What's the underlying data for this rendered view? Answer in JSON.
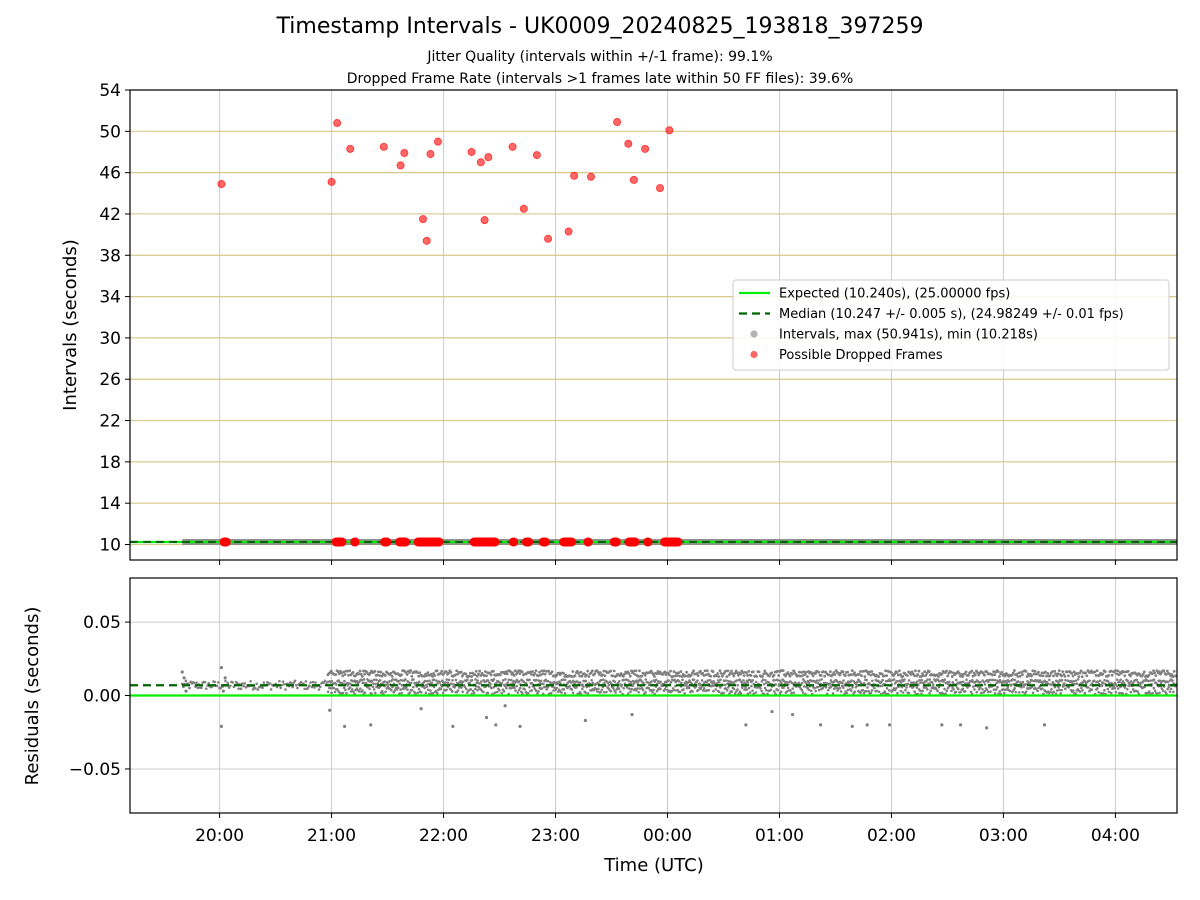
{
  "figure": {
    "title": "Timestamp Intervals - UK0009_20240825_193818_397259",
    "subtitle_1": "Jitter Quality (intervals within +/-1 frame): 99.1%",
    "subtitle_2": "Dropped Frame Rate (intervals >1 frames late within 50 FF files): 39.6%",
    "colors": {
      "expected": "#00ee00",
      "median": "#006400",
      "intervals": "#808080",
      "dropped": "#ff0000",
      "hgrid_top": "#d8c88a",
      "grid": "#cccccc"
    }
  },
  "chart_data": [
    {
      "type": "scatter",
      "ylabel": "Intervals (seconds)",
      "xlabel": "",
      "ylim": [
        8.5,
        54
      ],
      "yticks": [
        10,
        14,
        18,
        22,
        26,
        30,
        34,
        38,
        42,
        46,
        50,
        54
      ],
      "ytick_labels": [
        "10",
        "14",
        "18",
        "22",
        "26",
        "30",
        "34",
        "38",
        "42",
        "46",
        "50",
        "54"
      ],
      "xlim_hours": [
        19.2,
        4.55
      ],
      "xticks": [
        "20:00",
        "21:00",
        "22:00",
        "23:00",
        "00:00",
        "01:00",
        "02:00",
        "03:00",
        "04:00"
      ],
      "grid": true,
      "legend": {
        "placement": "center-right",
        "entries": [
          {
            "label": "Expected (10.240s), (25.00000 fps)",
            "kind": "solid-line",
            "color": "#00ee00"
          },
          {
            "label": "Median (10.247 +/- 0.005 s), (24.98249 +/- 0.01 fps)",
            "kind": "dashed-line",
            "color": "#006400"
          },
          {
            "label": "Intervals, max (50.941s), min (10.218s)",
            "kind": "marker",
            "color": "#808080"
          },
          {
            "label": "Possible Dropped Frames",
            "kind": "marker",
            "color": "#ff0000"
          }
        ]
      },
      "expected_interval": 10.24,
      "median_interval": 10.247,
      "regular_interval_span": [
        "19:40",
        "04:35"
      ],
      "dropped_frames_high": [
        [
          "20:01",
          44.9
        ],
        [
          "21:00",
          45.1
        ],
        [
          "21:03",
          50.8
        ],
        [
          "21:10",
          48.3
        ],
        [
          "21:28",
          48.5
        ],
        [
          "21:37",
          46.7
        ],
        [
          "21:39",
          47.9
        ],
        [
          "21:49",
          41.5
        ],
        [
          "21:51",
          39.4
        ],
        [
          "21:53",
          47.8
        ],
        [
          "21:57",
          49.0
        ],
        [
          "22:15",
          48.0
        ],
        [
          "22:20",
          47.0
        ],
        [
          "22:22",
          41.4
        ],
        [
          "22:24",
          47.5
        ],
        [
          "22:37",
          48.5
        ],
        [
          "22:43",
          42.5
        ],
        [
          "22:50",
          47.7
        ],
        [
          "22:56",
          39.6
        ],
        [
          "23:07",
          40.3
        ],
        [
          "23:10",
          45.7
        ],
        [
          "23:19",
          45.6
        ],
        [
          "23:33",
          50.9
        ],
        [
          "23:39",
          48.8
        ],
        [
          "23:42",
          45.3
        ],
        [
          "23:48",
          48.3
        ],
        [
          "23:56",
          44.5
        ],
        [
          "00:01",
          50.1
        ]
      ],
      "dropped_frames_baseline_ranges": [
        [
          "20:00",
          "20:06"
        ],
        [
          "21:00",
          "21:08"
        ],
        [
          "21:10",
          "21:15"
        ],
        [
          "21:26",
          "21:32"
        ],
        [
          "21:34",
          "21:42"
        ],
        [
          "21:44",
          "22:00"
        ],
        [
          "22:14",
          "22:30"
        ],
        [
          "22:35",
          "22:40"
        ],
        [
          "22:42",
          "22:48"
        ],
        [
          "22:51",
          "22:57"
        ],
        [
          "23:02",
          "23:11"
        ],
        [
          "23:15",
          "23:20"
        ],
        [
          "23:29",
          "23:35"
        ],
        [
          "23:37",
          "23:45"
        ],
        [
          "23:47",
          "23:52"
        ],
        [
          "23:56",
          "00:08"
        ]
      ]
    },
    {
      "type": "scatter",
      "ylabel": "Residuals (seconds)",
      "xlabel": "Time (UTC)",
      "ylim": [
        -0.08,
        0.08
      ],
      "yticks": [
        -0.05,
        0,
        0.05
      ],
      "ytick_labels": [
        "−0.05",
        "0.00",
        "0.05"
      ],
      "xlim_hours": [
        19.2,
        4.55
      ],
      "xticks": [
        "20:00",
        "21:00",
        "22:00",
        "23:00",
        "00:00",
        "01:00",
        "02:00",
        "03:00",
        "04:00"
      ],
      "grid": true,
      "expected_residual": 0.0,
      "median_residual": 0.007,
      "early_band": {
        "span": [
          "19:40",
          "20:58"
        ],
        "range": [
          0.004,
          0.01
        ]
      },
      "main_band": {
        "span": [
          "20:58",
          "04:35"
        ],
        "range": [
          0.0,
          0.017
        ]
      },
      "early_points": [
        [
          "19:40",
          0.016
        ],
        [
          "19:41",
          0.012
        ],
        [
          "19:42",
          0.003
        ],
        [
          "20:01",
          0.019
        ],
        [
          "20:02",
          0.003
        ],
        [
          "20:03",
          0.012
        ]
      ],
      "outliers": [
        [
          "20:01",
          -0.021
        ],
        [
          "20:59",
          -0.01
        ],
        [
          "21:07",
          -0.021
        ],
        [
          "21:21",
          -0.02
        ],
        [
          "21:48",
          -0.009
        ],
        [
          "22:05",
          -0.021
        ],
        [
          "22:23",
          -0.015
        ],
        [
          "22:28",
          -0.02
        ],
        [
          "22:33",
          -0.007
        ],
        [
          "22:41",
          -0.021
        ],
        [
          "23:16",
          -0.017
        ],
        [
          "23:41",
          -0.013
        ],
        [
          "00:42",
          -0.02
        ],
        [
          "00:56",
          -0.011
        ],
        [
          "01:07",
          -0.013
        ],
        [
          "01:22",
          -0.02
        ],
        [
          "01:39",
          -0.021
        ],
        [
          "01:47",
          -0.02
        ],
        [
          "01:59",
          -0.02
        ],
        [
          "02:27",
          -0.02
        ],
        [
          "02:37",
          -0.02
        ],
        [
          "02:51",
          -0.022
        ],
        [
          "03:22",
          -0.02
        ]
      ]
    }
  ]
}
